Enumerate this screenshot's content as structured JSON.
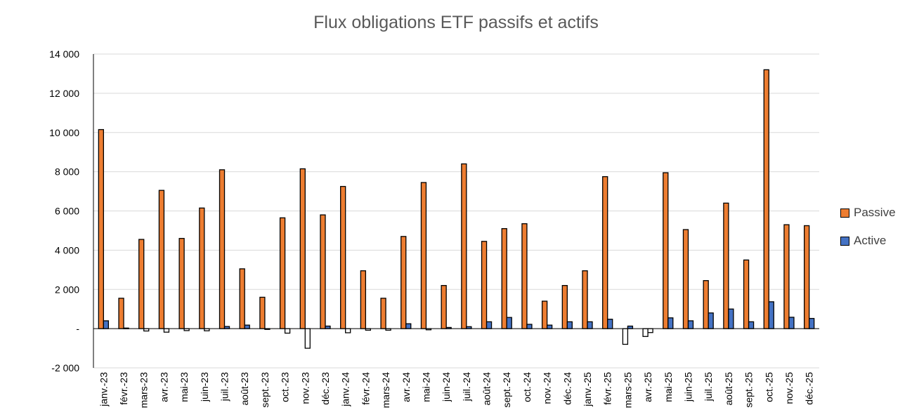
{
  "chart_data": {
    "type": "bar",
    "title": "Flux obligations ETF passifs et actifs",
    "xlabel": "",
    "ylabel": "",
    "ylim": [
      -2000,
      14000
    ],
    "yticks": [
      -2000,
      0,
      2000,
      4000,
      6000,
      8000,
      10000,
      12000,
      14000
    ],
    "ytick_labels": [
      "-2 000",
      "-",
      "2 000",
      "4 000",
      "6 000",
      "8 000",
      "10 000",
      "12 000",
      "14 000"
    ],
    "grid": true,
    "legend_position": "right",
    "categories": [
      "janv.-23",
      "févr.-23",
      "mars-23",
      "avr.-23",
      "mai-23",
      "juin-23",
      "juil.-23",
      "août-23",
      "sept.-23",
      "oct.-23",
      "nov.-23",
      "déc.-23",
      "janv.-24",
      "févr.-24",
      "mars-24",
      "avr.-24",
      "mai-24",
      "juin-24",
      "juil.-24",
      "août-24",
      "sept.-24",
      "oct.-24",
      "nov.-24",
      "déc.-24",
      "janv.-25",
      "févr.-25",
      "mars-25",
      "avr.-25",
      "mai-25",
      "juin-25",
      "juil.-25",
      "août-25",
      "sept.-25",
      "oct.-25",
      "nov.-25",
      "déc.-25"
    ],
    "series": [
      {
        "name": "Passive",
        "color": "#ED7D31",
        "values": [
          10150,
          1550,
          4550,
          7050,
          4600,
          6150,
          8100,
          3050,
          1600,
          5650,
          8150,
          5800,
          7250,
          2950,
          1550,
          4700,
          7450,
          2200,
          8400,
          4450,
          5100,
          5350,
          1400,
          2200,
          2950,
          7750,
          -800,
          -400,
          7950,
          5050,
          2450,
          6400,
          3500,
          13200,
          5300,
          5250
        ]
      },
      {
        "name": "Active",
        "color": "#4472C4",
        "values": [
          400,
          30,
          -120,
          -180,
          -100,
          -110,
          110,
          180,
          -40,
          -230,
          -1000,
          130,
          -210,
          -80,
          -80,
          250,
          -60,
          60,
          100,
          350,
          570,
          220,
          180,
          350,
          350,
          480,
          130,
          -200,
          550,
          400,
          800,
          1000,
          350,
          1370,
          580,
          520
        ]
      }
    ]
  }
}
